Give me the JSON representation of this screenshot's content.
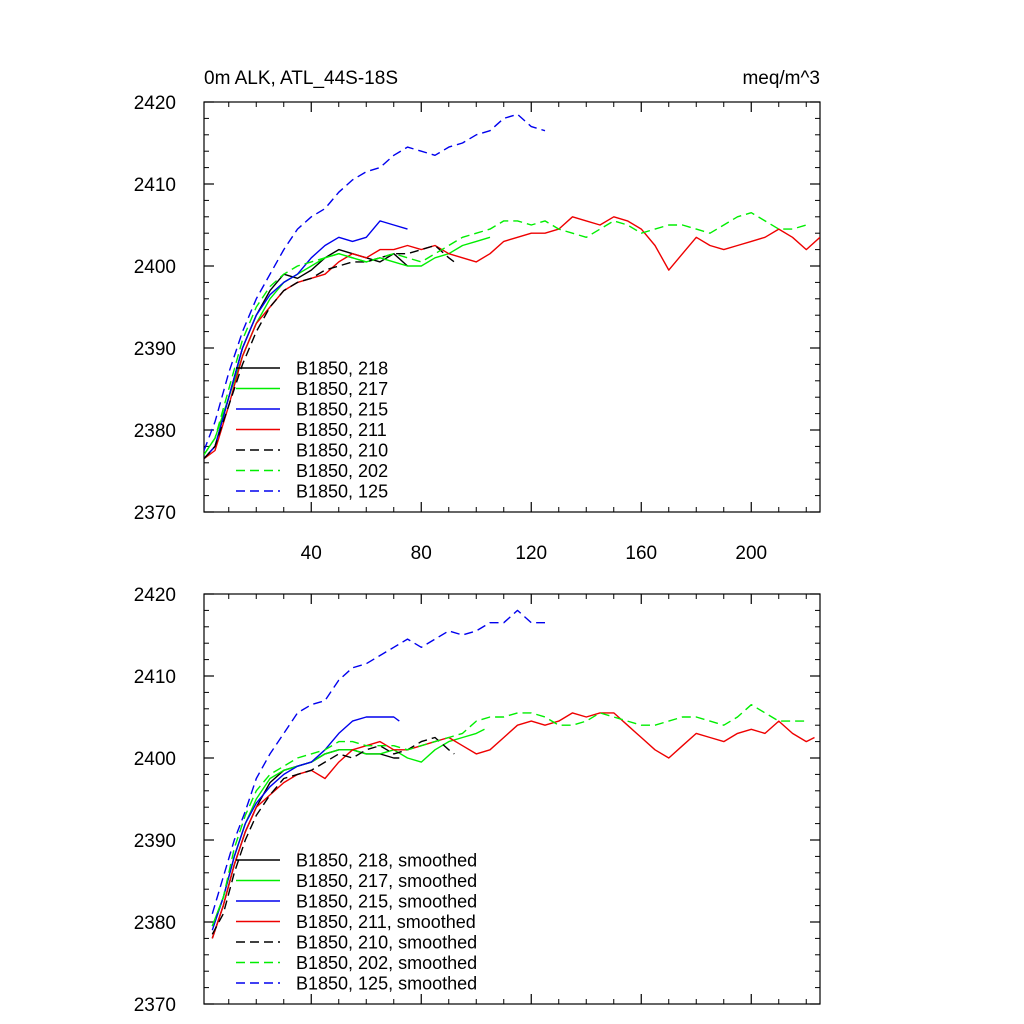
{
  "chart_data": [
    {
      "type": "line",
      "title_left": "0m ALK, ATL_44S-18S",
      "title_right": "meq/m^3",
      "xlabel": "",
      "ylabel": "",
      "xlim": [
        1,
        225
      ],
      "ylim": [
        2370,
        2420
      ],
      "xticks": [
        40,
        80,
        120,
        160,
        200
      ],
      "yticks": [
        2370,
        2380,
        2390,
        2400,
        2410,
        2420
      ],
      "show_x_tick_labels": true,
      "legend_position": "lower-left",
      "series": [
        {
          "name": "B1850, 218",
          "color": "#000000",
          "dash": "solid",
          "x": [
            1,
            5,
            10,
            15,
            20,
            25,
            30,
            35,
            40,
            45,
            50,
            55,
            60,
            65,
            70,
            75
          ],
          "y": [
            2376.5,
            2378,
            2384,
            2390,
            2394,
            2397,
            2399,
            2398.5,
            2399.5,
            2401,
            2402,
            2401.5,
            2401,
            2400.5,
            2401.5,
            2400
          ]
        },
        {
          "name": "B1850, 217",
          "color": "#00ee00",
          "dash": "solid",
          "x": [
            1,
            5,
            10,
            15,
            20,
            25,
            30,
            35,
            40,
            45,
            50,
            55,
            60,
            65,
            70,
            75,
            80,
            85,
            90,
            95,
            100,
            105
          ],
          "y": [
            2377,
            2379,
            2384,
            2389,
            2393,
            2396,
            2398,
            2399,
            2400,
            2401,
            2401.5,
            2401,
            2400.5,
            2401,
            2400.5,
            2400,
            2400,
            2401,
            2401.5,
            2402.5,
            2403,
            2403.5
          ]
        },
        {
          "name": "B1850, 215",
          "color": "#0000ee",
          "dash": "solid",
          "x": [
            1,
            5,
            10,
            15,
            20,
            25,
            30,
            35,
            40,
            45,
            50,
            55,
            60,
            65,
            70,
            75
          ],
          "y": [
            2376.5,
            2378,
            2384,
            2390,
            2394,
            2396.5,
            2398,
            2399,
            2401,
            2402.5,
            2403.5,
            2403,
            2403.5,
            2405.5,
            2405,
            2404.5
          ]
        },
        {
          "name": "B1850, 211",
          "color": "#ee0000",
          "dash": "solid",
          "x": [
            1,
            5,
            10,
            15,
            20,
            25,
            30,
            35,
            40,
            45,
            50,
            55,
            60,
            65,
            70,
            75,
            80,
            85,
            90,
            95,
            100,
            105,
            110,
            115,
            120,
            125,
            130,
            135,
            140,
            145,
            150,
            155,
            160,
            165,
            170,
            175,
            180,
            185,
            190,
            195,
            200,
            205,
            210,
            215,
            220,
            225
          ],
          "y": [
            2376.5,
            2377.5,
            2383,
            2389,
            2393,
            2395,
            2397,
            2398,
            2398.5,
            2399,
            2400.5,
            2401.5,
            2401,
            2402,
            2402,
            2402.5,
            2402,
            2402.5,
            2401.5,
            2401,
            2400.5,
            2401.5,
            2403,
            2403.5,
            2404,
            2404,
            2404.5,
            2406,
            2405.5,
            2405,
            2406,
            2405.5,
            2404.5,
            2402.5,
            2399.5,
            2401.5,
            2403.5,
            2402.5,
            2402,
            2402.5,
            2403,
            2403.5,
            2404.5,
            2403.5,
            2402,
            2403.5
          ]
        },
        {
          "name": "B1850, 210",
          "color": "#000000",
          "dash": "dashed",
          "x": [
            1,
            5,
            10,
            15,
            20,
            25,
            30,
            35,
            40,
            45,
            50,
            55,
            60,
            65,
            70,
            75,
            80,
            85,
            90,
            92
          ],
          "y": [
            2376.5,
            2378,
            2383,
            2388,
            2392,
            2395,
            2397,
            2398,
            2398.5,
            2399.5,
            2400,
            2400.5,
            2400.5,
            2401,
            2401.5,
            2401.5,
            2402,
            2402.5,
            2401,
            2400.5
          ]
        },
        {
          "name": "B1850, 202",
          "color": "#00ee00",
          "dash": "dashed",
          "x": [
            1,
            5,
            10,
            15,
            20,
            25,
            30,
            35,
            40,
            45,
            50,
            55,
            60,
            65,
            70,
            75,
            80,
            85,
            90,
            95,
            100,
            105,
            110,
            115,
            120,
            125,
            130,
            135,
            140,
            145,
            150,
            155,
            160,
            165,
            170,
            175,
            180,
            185,
            190,
            195,
            200,
            205,
            210,
            215,
            220
          ],
          "y": [
            2377,
            2379,
            2385,
            2391,
            2395,
            2397.5,
            2399,
            2400,
            2400.5,
            2401,
            2401.5,
            2401,
            2400.5,
            2401,
            2401.5,
            2401,
            2400.5,
            2401.5,
            2402.5,
            2403.5,
            2404,
            2404.5,
            2405.5,
            2405.5,
            2405,
            2405.5,
            2404.5,
            2404,
            2403.5,
            2404.5,
            2405.5,
            2405,
            2404,
            2404.5,
            2405,
            2405,
            2404.5,
            2404,
            2405,
            2406,
            2406.5,
            2405.5,
            2404.5,
            2404.5,
            2405
          ]
        },
        {
          "name": "B1850, 125",
          "color": "#0000ee",
          "dash": "dashed",
          "x": [
            1,
            5,
            10,
            15,
            20,
            25,
            30,
            35,
            40,
            45,
            50,
            55,
            60,
            65,
            70,
            75,
            80,
            85,
            90,
            95,
            100,
            105,
            110,
            115,
            120,
            125
          ],
          "y": [
            2377.5,
            2381,
            2387,
            2392,
            2396,
            2399,
            2402,
            2404.5,
            2406,
            2407,
            2409,
            2410.5,
            2411.5,
            2412,
            2413.5,
            2414.5,
            2414,
            2413.5,
            2414.5,
            2415,
            2416,
            2416.5,
            2418,
            2418.5,
            2417,
            2416.5
          ]
        }
      ]
    },
    {
      "type": "line",
      "xlabel": "",
      "ylabel": "",
      "xlim": [
        1,
        225
      ],
      "ylim": [
        2370,
        2420
      ],
      "xticks": [
        40,
        80,
        120,
        160,
        200
      ],
      "yticks": [
        2370,
        2380,
        2390,
        2400,
        2410,
        2420
      ],
      "show_x_tick_labels": false,
      "legend_position": "lower-left",
      "series": [
        {
          "name": "B1850, 218, smoothed",
          "color": "#000000",
          "dash": "solid",
          "x": [
            4,
            8,
            12,
            16,
            20,
            25,
            30,
            35,
            40,
            45,
            50,
            55,
            60,
            65,
            70,
            72
          ],
          "y": [
            2378,
            2382,
            2387,
            2391,
            2394,
            2397,
            2398.5,
            2399,
            2399.5,
            2400.5,
            2401,
            2401,
            2400.5,
            2400.5,
            2400,
            2400
          ]
        },
        {
          "name": "B1850, 217, smoothed",
          "color": "#00ee00",
          "dash": "solid",
          "x": [
            4,
            8,
            12,
            16,
            20,
            25,
            30,
            35,
            40,
            45,
            50,
            55,
            60,
            65,
            70,
            75,
            80,
            85,
            90,
            95,
            100,
            103
          ],
          "y": [
            2379.5,
            2383,
            2388,
            2392,
            2395,
            2397.5,
            2398.5,
            2399,
            2399.5,
            2400.5,
            2401,
            2401,
            2400.5,
            2400.5,
            2401,
            2400,
            2399.5,
            2401,
            2402,
            2402.5,
            2403,
            2403.5
          ]
        },
        {
          "name": "B1850, 215, smoothed",
          "color": "#0000ee",
          "dash": "solid",
          "x": [
            4,
            8,
            12,
            16,
            20,
            25,
            30,
            35,
            40,
            45,
            50,
            55,
            60,
            65,
            70,
            72
          ],
          "y": [
            2379,
            2383,
            2388,
            2392,
            2394.5,
            2396.5,
            2398,
            2399,
            2399.5,
            2401,
            2403,
            2404.5,
            2405,
            2405,
            2405,
            2404.5
          ]
        },
        {
          "name": "B1850, 211, smoothed",
          "color": "#ee0000",
          "dash": "solid",
          "x": [
            4,
            8,
            12,
            16,
            20,
            25,
            30,
            35,
            40,
            45,
            50,
            55,
            60,
            65,
            70,
            75,
            80,
            85,
            90,
            95,
            100,
            105,
            110,
            115,
            120,
            125,
            130,
            135,
            140,
            145,
            150,
            155,
            160,
            165,
            170,
            175,
            180,
            185,
            190,
            195,
            200,
            205,
            210,
            215,
            220,
            223
          ],
          "y": [
            2378,
            2382,
            2387,
            2391,
            2394,
            2395.5,
            2397,
            2398,
            2398.5,
            2397.5,
            2399.5,
            2401,
            2401.5,
            2402,
            2401,
            2401,
            2401.5,
            2402,
            2402.5,
            2401.5,
            2400.5,
            2401,
            2402.5,
            2404,
            2404.5,
            2404,
            2404.5,
            2405.5,
            2405,
            2405.5,
            2405.5,
            2404,
            2402.5,
            2401,
            2400,
            2401.5,
            2403,
            2402.5,
            2402,
            2403,
            2403.5,
            2403,
            2404.5,
            2403,
            2402,
            2402.5
          ]
        },
        {
          "name": "B1850, 210, smoothed",
          "color": "#000000",
          "dash": "dashed",
          "x": [
            4,
            8,
            12,
            16,
            20,
            25,
            30,
            35,
            40,
            45,
            50,
            55,
            60,
            65,
            70,
            75,
            80,
            85,
            90,
            92
          ],
          "y": [
            2378.5,
            2381,
            2386,
            2390,
            2393,
            2395.5,
            2397.5,
            2398,
            2398.5,
            2399.5,
            2400.5,
            2400,
            2401,
            2401.5,
            2400.5,
            2401,
            2402,
            2402.5,
            2401,
            2400.5
          ]
        },
        {
          "name": "B1850, 202, smoothed",
          "color": "#00ee00",
          "dash": "dashed",
          "x": [
            4,
            8,
            12,
            16,
            20,
            25,
            30,
            35,
            40,
            45,
            50,
            55,
            60,
            65,
            70,
            75,
            80,
            85,
            90,
            95,
            100,
            105,
            110,
            115,
            120,
            125,
            130,
            135,
            140,
            145,
            150,
            155,
            160,
            165,
            170,
            175,
            180,
            185,
            190,
            195,
            200,
            205,
            210,
            215,
            220
          ],
          "y": [
            2379.5,
            2383,
            2389,
            2393,
            2396,
            2398,
            2399,
            2400,
            2400.5,
            2401,
            2402,
            2402,
            2401.5,
            2401.5,
            2401.5,
            2401,
            2401.5,
            2402,
            2402.5,
            2403,
            2404.5,
            2405,
            2405,
            2405.5,
            2405.5,
            2405,
            2404,
            2404,
            2404.5,
            2405.5,
            2405,
            2404.5,
            2404,
            2404,
            2404.5,
            2405,
            2405,
            2404.5,
            2404,
            2405,
            2406.5,
            2405.5,
            2404.5,
            2404.5,
            2404.5
          ]
        },
        {
          "name": "B1850, 125, smoothed",
          "color": "#0000ee",
          "dash": "dashed",
          "x": [
            4,
            8,
            12,
            16,
            20,
            25,
            30,
            35,
            40,
            45,
            50,
            55,
            60,
            65,
            70,
            75,
            80,
            85,
            90,
            95,
            100,
            105,
            110,
            115,
            120,
            125
          ],
          "y": [
            2381,
            2385.5,
            2390,
            2393.5,
            2397.5,
            2400.5,
            2403,
            2405.5,
            2406.5,
            2407,
            2409.5,
            2411,
            2411.5,
            2412.5,
            2413.5,
            2414.5,
            2413.5,
            2414.5,
            2415.5,
            2415,
            2415.5,
            2416.5,
            2416.5,
            2418,
            2416.5,
            2416.5
          ]
        }
      ]
    }
  ]
}
